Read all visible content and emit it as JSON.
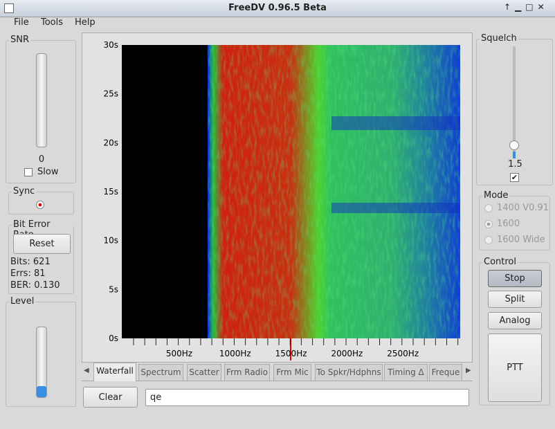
{
  "window": {
    "title": "FreeDV 0.96.5 Beta"
  },
  "menu": [
    "File",
    "Tools",
    "Help"
  ],
  "snr": {
    "title": "SNR",
    "value": "0",
    "slow": "Slow"
  },
  "sync": {
    "title": "Sync"
  },
  "ber": {
    "title": "Bit Error Rate",
    "reset": "Reset",
    "bits": "Bits: 621",
    "errs": "Errs: 81",
    "ber": "BER: 0.130"
  },
  "level": {
    "title": "Level"
  },
  "waterfall": {
    "y_labels": [
      "30s",
      "25s",
      "20s",
      "15s",
      "10s",
      "5s",
      "0s"
    ],
    "x_labels": [
      "500Hz",
      "1000Hz",
      "1500Hz",
      "2000Hz",
      "2500Hz"
    ]
  },
  "tabs": [
    "Waterfall",
    "Spectrum",
    "Scatter",
    "Frm Radio",
    "Frm Mic",
    "To Spkr/Hdphns",
    "Timing Δ",
    "Freque"
  ],
  "clear": "Clear",
  "text_input": "qe",
  "squelch": {
    "title": "Squelch",
    "value": "1.5"
  },
  "mode": {
    "title": "Mode",
    "options": [
      "1400 V0.91",
      "1600",
      "1600 Wide"
    ]
  },
  "control": {
    "title": "Control",
    "buttons": [
      "Stop",
      "Split",
      "Analog",
      "PTT"
    ]
  }
}
